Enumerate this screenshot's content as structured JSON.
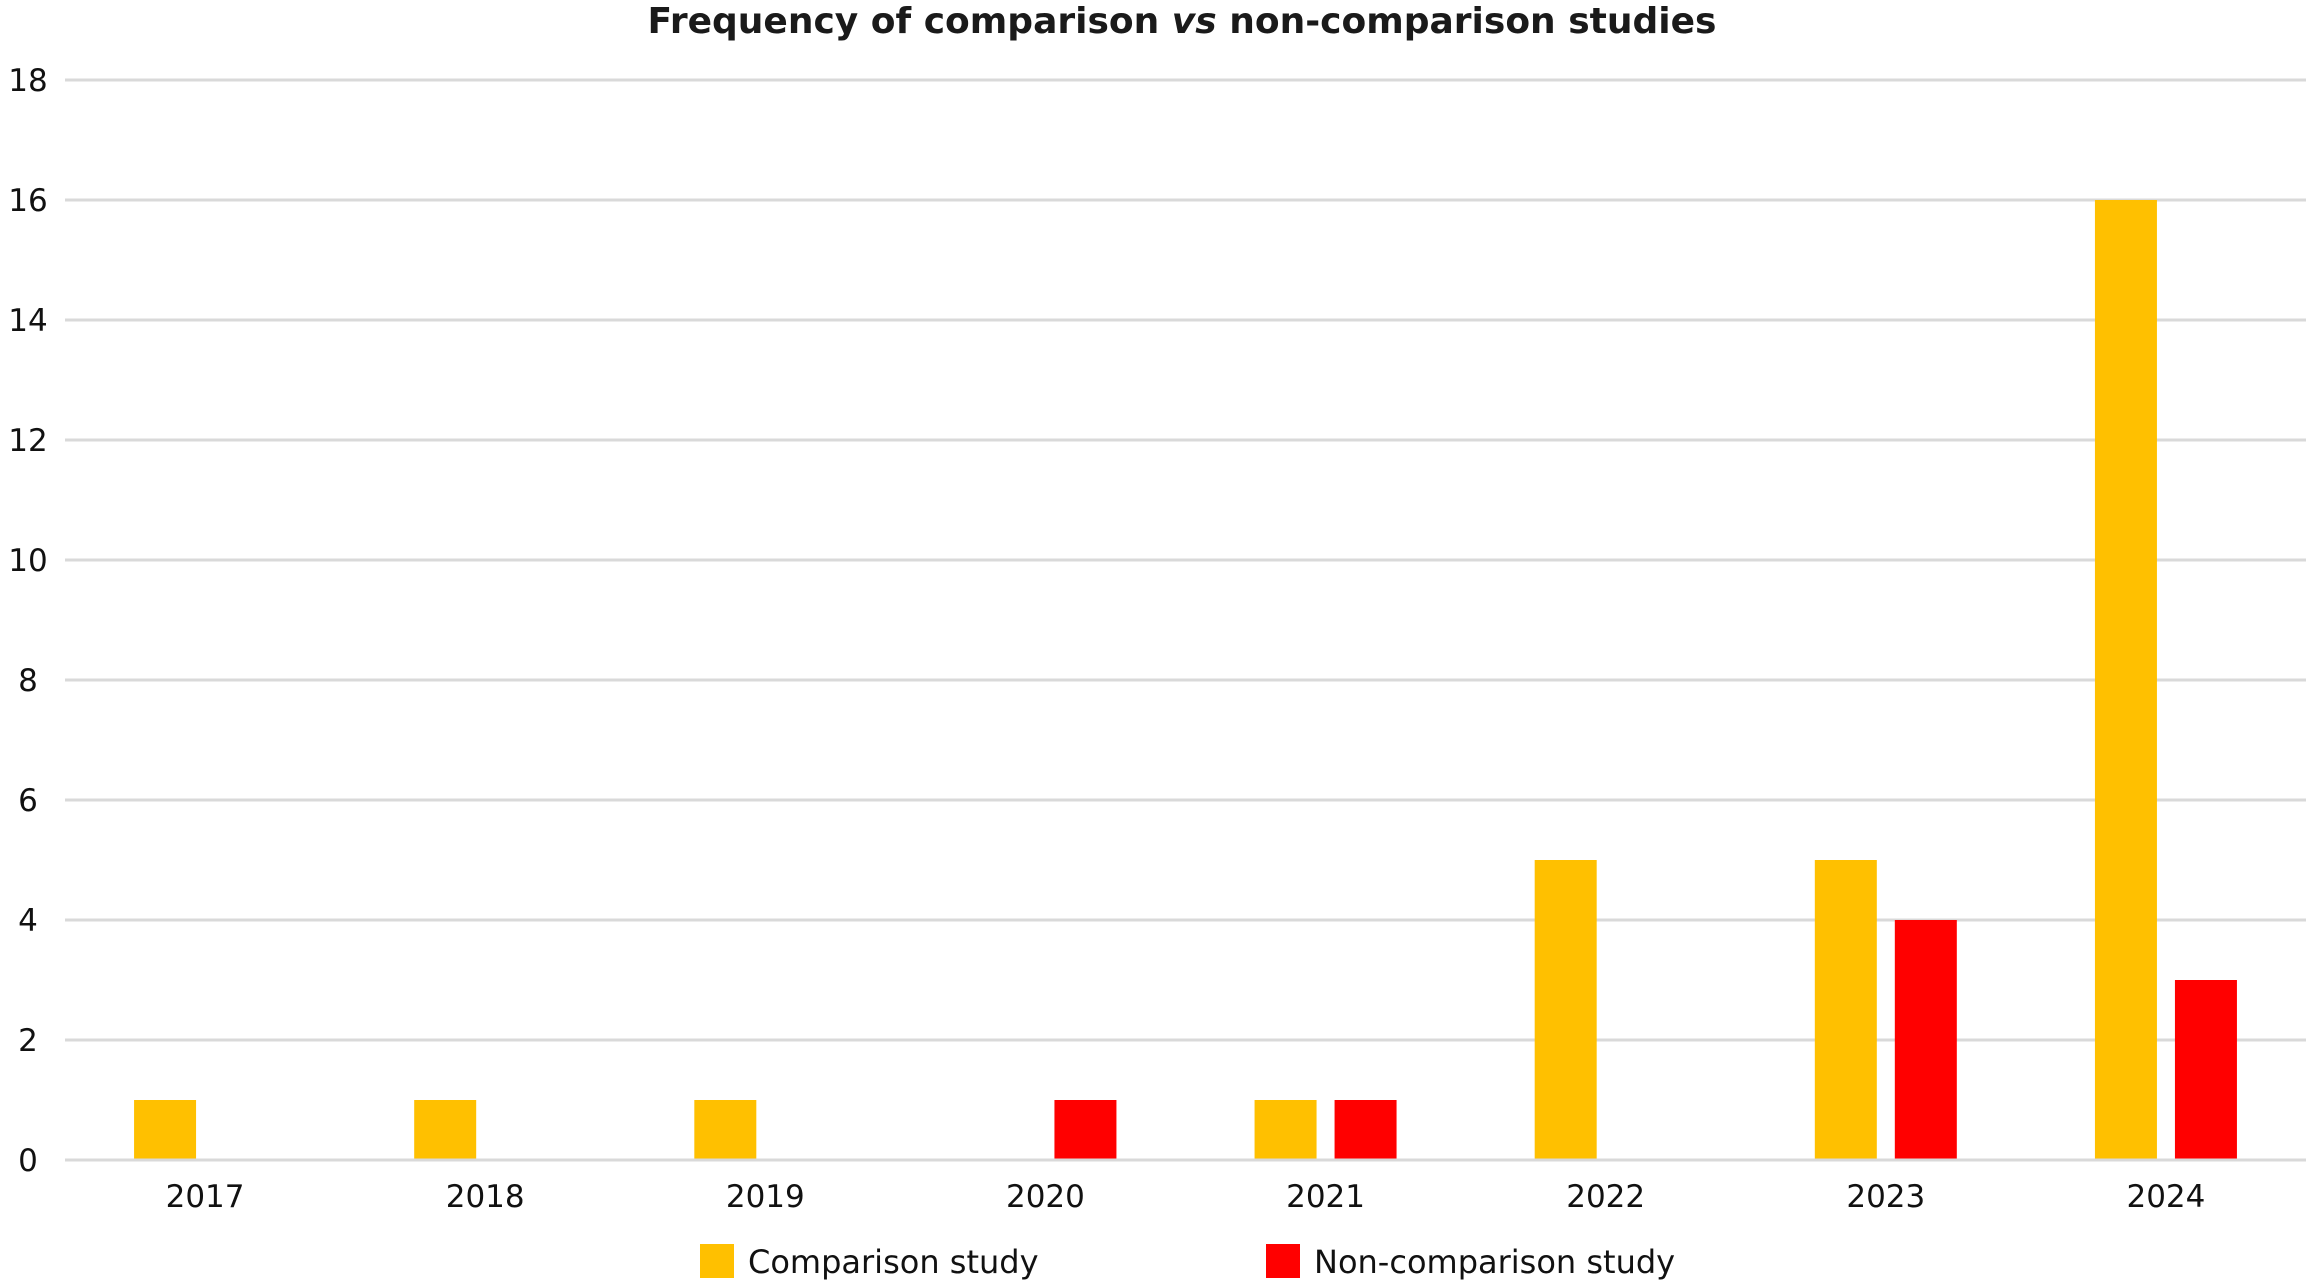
{
  "chart_data": {
    "type": "bar",
    "title_parts": [
      "Frequency of comparison ",
      "vs",
      " non-comparison studies"
    ],
    "categories": [
      "2017",
      "2018",
      "2019",
      "2020",
      "2021",
      "2022",
      "2023",
      "2024"
    ],
    "series": [
      {
        "name": "Comparison study",
        "color": "#FFC000",
        "values": [
          1,
          1,
          1,
          0,
          1,
          5,
          5,
          16
        ]
      },
      {
        "name": "Non-comparison study",
        "color": "#FF0000",
        "values": [
          0,
          0,
          0,
          1,
          1,
          0,
          4,
          3
        ]
      }
    ],
    "ylim": [
      0,
      18
    ],
    "yticks": [
      0,
      2,
      4,
      6,
      8,
      10,
      12,
      14,
      16,
      18
    ],
    "grid": true,
    "legend_position": "bottom"
  }
}
